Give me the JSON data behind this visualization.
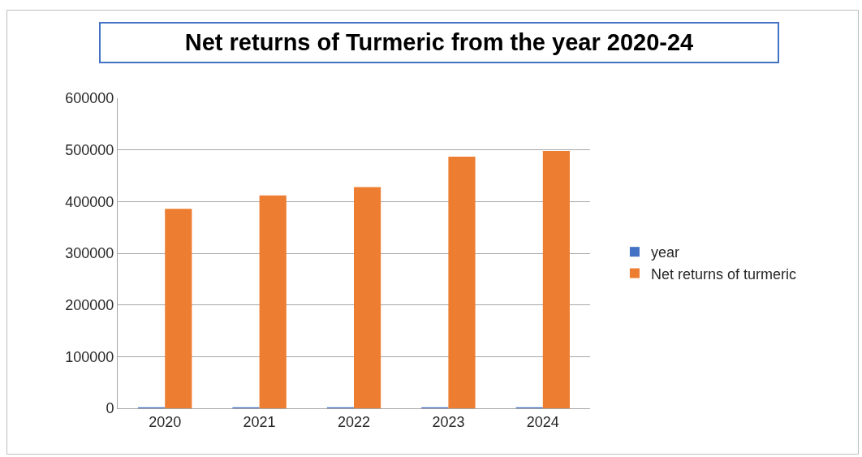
{
  "chart_data": {
    "type": "bar",
    "title": "Net returns of Turmeric from the year 2020-24",
    "categories": [
      "2020",
      "2021",
      "2022",
      "2023",
      "2024"
    ],
    "series": [
      {
        "name": "year",
        "color": "#4472c4",
        "values": [
          2020,
          2021,
          2022,
          2023,
          2024
        ]
      },
      {
        "name": "Net returns of turmeric",
        "color": "#ed7d31",
        "values": [
          386000,
          412000,
          428000,
          487000,
          498000
        ]
      }
    ],
    "ylim": [
      0,
      600000
    ],
    "yticks": [
      0,
      100000,
      200000,
      300000,
      400000,
      500000,
      600000
    ],
    "grid": "y",
    "legend": "right"
  }
}
